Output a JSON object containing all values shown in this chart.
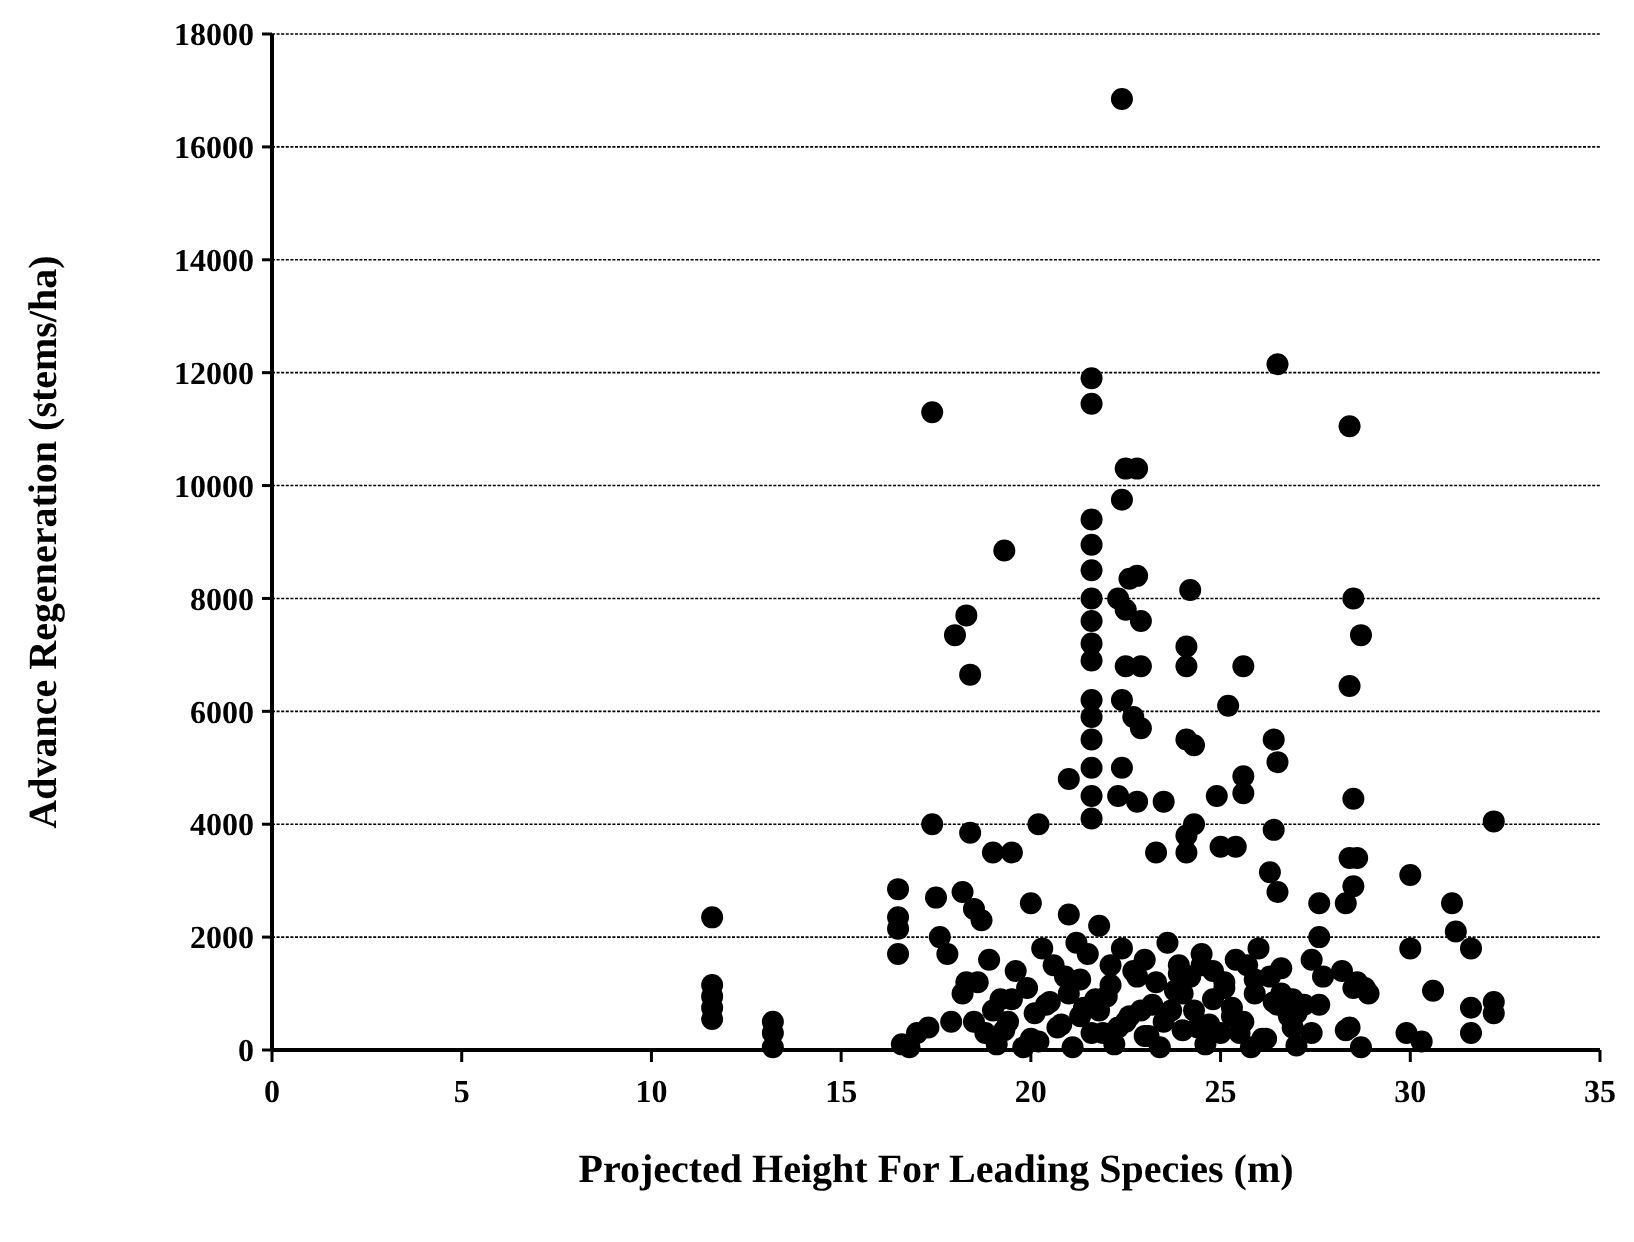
{
  "chart_data": {
    "type": "scatter",
    "xlabel": "Projected Height For Leading Species (m)",
    "ylabel": "Advance Regeneration (stems/ha)",
    "xlim": [
      0,
      35
    ],
    "xticks": [
      0,
      5,
      10,
      15,
      20,
      25,
      30,
      35
    ],
    "ylim": [
      0,
      18000
    ],
    "yticks": [
      0,
      2000,
      4000,
      6000,
      8000,
      10000,
      12000,
      14000,
      16000,
      18000
    ],
    "grid": "y",
    "marker": "circle",
    "series": [
      {
        "color": "#000000",
        "x": [
          11.6,
          11.6,
          11.6,
          11.6,
          11.6,
          13.2,
          13.2,
          13.2,
          16.5,
          16.5,
          16.5,
          16.5,
          16.6,
          16.8,
          17.0,
          17.3,
          17.4,
          17.4,
          17.5,
          17.6,
          17.8,
          18.0,
          18.3,
          18.4,
          18.4,
          18.2,
          18.5,
          18.2,
          18.7,
          19.3,
          19.0,
          19.5,
          20.2,
          20.0,
          21.0,
          21.0,
          21.6,
          21.6,
          21.6,
          21.6,
          21.6,
          21.6,
          21.6,
          21.6,
          21.6,
          21.6,
          21.6,
          21.6,
          21.6,
          21.6,
          21.6,
          22.4,
          22.5,
          22.8,
          22.4,
          22.6,
          22.8,
          22.3,
          22.5,
          22.9,
          22.5,
          22.9,
          22.4,
          22.7,
          22.9,
          22.4,
          22.3,
          22.8,
          23.5,
          23.3,
          24.2,
          24.1,
          24.1,
          24.1,
          24.3,
          25.2,
          25.6,
          24.9,
          25.6,
          25.6,
          24.3,
          24.1,
          24.1,
          26.5,
          26.4,
          26.5,
          26.4,
          26.3,
          26.5,
          25.0,
          25.4,
          28.4,
          28.5,
          28.7,
          28.4,
          28.5,
          28.4,
          28.6,
          28.5,
          28.3,
          30.0,
          30.0,
          30.6,
          29.9,
          30.3,
          31.1,
          31.2,
          31.6,
          31.6,
          31.6,
          32.2,
          32.2,
          32.2,
          27.6,
          27.6,
          27.4,
          27.6,
          27.4,
          18.6,
          18.9,
          19.2,
          19.6,
          19.9,
          20.3,
          20.6,
          20.9,
          21.2,
          21.5,
          21.8,
          22.1,
          22.4,
          22.7,
          23.0,
          23.3,
          23.6,
          23.9,
          24.2,
          24.5,
          24.8,
          25.1,
          25.4,
          25.7,
          26.0,
          26.3,
          26.6,
          26.9,
          27.2,
          28.2,
          28.6,
          28.9,
          18.8,
          19.4,
          20.0,
          20.7,
          21.3,
          21.9,
          22.5,
          23.1,
          23.7,
          24.4,
          25.0,
          25.6,
          26.2,
          26.8,
          28.4,
          19.1,
          20.4,
          21.7,
          22.9,
          24.0,
          25.3,
          26.5,
          18.5,
          19.8,
          21.1,
          22.2,
          23.4,
          24.6,
          25.8,
          27.0,
          28.7,
          19.0,
          19.5,
          20.1,
          20.5,
          21.0,
          21.4,
          22.0,
          22.6,
          23.2,
          23.8,
          24.3,
          24.8,
          25.3,
          25.9,
          26.4,
          27.0,
          28.5,
          19.3,
          20.8,
          21.6,
          22.3,
          23.0,
          23.5,
          24.0,
          24.7,
          25.5,
          26.1,
          26.9,
          28.3,
          20.2,
          21.3,
          22.1,
          22.8,
          23.9,
          25.1,
          25.9,
          27.7,
          28.8,
          18.3,
          17.9,
          21.8,
          24.5,
          26.6
        ],
        "values": [
          2350,
          1150,
          950,
          750,
          550,
          500,
          300,
          50,
          2850,
          2350,
          2150,
          1700,
          100,
          50,
          300,
          400,
          11300,
          4000,
          2700,
          2000,
          1700,
          7350,
          7700,
          6650,
          3850,
          2800,
          2500,
          1000,
          2300,
          8850,
          3500,
          3500,
          4000,
          2600,
          2400,
          4800,
          11900,
          11450,
          9400,
          8950,
          8500,
          8000,
          7600,
          7200,
          6900,
          6200,
          5900,
          5500,
          5000,
          4500,
          4100,
          16850,
          10300,
          10300,
          9750,
          8350,
          8400,
          8000,
          7800,
          7600,
          6800,
          6800,
          6200,
          5900,
          5700,
          5000,
          4500,
          4400,
          4400,
          3500,
          8150,
          7150,
          6800,
          5500,
          5400,
          6100,
          6800,
          4500,
          4850,
          4550,
          4000,
          3800,
          3500,
          12150,
          5500,
          5100,
          3900,
          3150,
          2800,
          3600,
          3600,
          11050,
          8000,
          7350,
          6450,
          4450,
          3400,
          3400,
          2900,
          2600,
          3100,
          1800,
          1050,
          300,
          150,
          2600,
          2100,
          1800,
          750,
          300,
          4050,
          850,
          650,
          2600,
          2000,
          1600,
          800,
          300,
          1200,
          1600,
          900,
          1400,
          1100,
          1800,
          1500,
          1300,
          1900,
          1700,
          2200,
          1500,
          1800,
          1400,
          1600,
          1200,
          1900,
          1500,
          1300,
          1700,
          1400,
          1100,
          1600,
          1500,
          1800,
          1300,
          1000,
          900,
          800,
          1400,
          1200,
          1000,
          300,
          500,
          200,
          400,
          600,
          300,
          500,
          250,
          700,
          400,
          300,
          500,
          200,
          600,
          400,
          100,
          800,
          900,
          700,
          1000,
          600,
          800,
          500,
          50,
          50,
          100,
          50,
          100,
          50,
          80,
          50,
          700,
          900,
          650,
          850,
          1000,
          750,
          950,
          600,
          800,
          1050,
          700,
          900,
          750,
          1000,
          850,
          650,
          1100,
          350,
          450,
          300,
          400,
          250,
          500,
          350,
          450,
          300,
          200,
          400,
          350,
          150,
          1250,
          1150,
          1300,
          1350,
          1200,
          1250,
          1300,
          1100,
          1200,
          500,
          700,
          1500,
          1450
        ]
      }
    ]
  }
}
